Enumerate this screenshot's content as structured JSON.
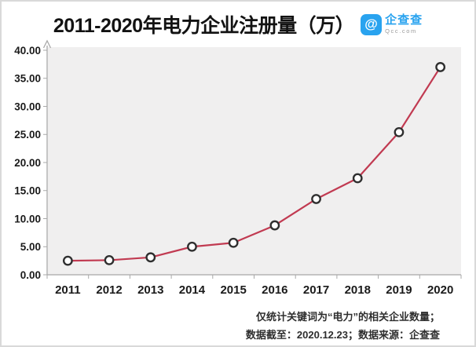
{
  "header": {
    "title": "2011-2020年电力企业注册量（万）",
    "logo": {
      "glyph": "@",
      "brand": "企查查",
      "domain": "Qcc.com",
      "brand_color": "#29a3ef"
    }
  },
  "chart_data": {
    "type": "line",
    "title": "2011-2020年电力企业注册量（万）",
    "categories": [
      "2011",
      "2012",
      "2013",
      "2014",
      "2015",
      "2016",
      "2017",
      "2018",
      "2019",
      "2020"
    ],
    "values": [
      2.5,
      2.6,
      3.1,
      5.0,
      5.7,
      8.8,
      13.5,
      17.2,
      25.4,
      37.0
    ],
    "xlabel": "",
    "ylabel": "",
    "ylim": [
      0,
      40
    ],
    "y_tick_step": 5,
    "y_tick_labels": [
      "0.00",
      "5.00",
      "10.00",
      "15.00",
      "20.00",
      "25.00",
      "30.00",
      "35.00",
      "40.00"
    ],
    "grid": false,
    "legend": false,
    "marker": "circle",
    "colors": {
      "line": "#c13a51",
      "marker_fill": "#ffffff",
      "marker_stroke": "#2f2f2f",
      "plot_background": "#f0efef",
      "axis": "#a8a8a8",
      "tick_label": "#1a1a1a"
    }
  },
  "footnote": {
    "line1": "仅统计关键词为“电力”的相关企业数量；",
    "line2": "数据截至：2020.12.23；数据来源：企查查"
  }
}
